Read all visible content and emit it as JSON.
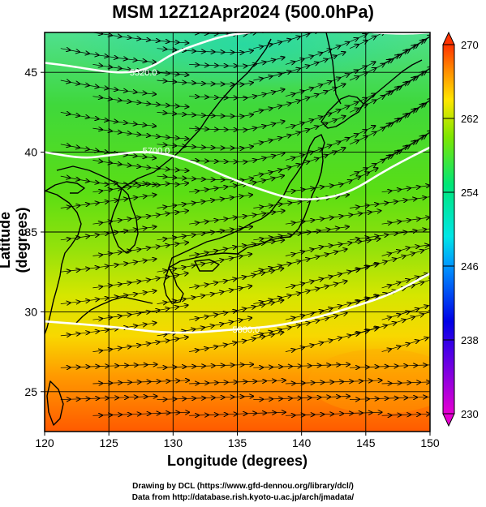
{
  "title": "MSM 12Z12Apr2024 (500.0hPa)",
  "xlabel": "Longitude (degrees)",
  "ylabel": "Latitude  (degrees)",
  "credits": {
    "line1": "Drawing by DCL (https://www.gfd-dennou.org/library/dcl/)",
    "line2": "Data from http://database.rish.kyoto-u.ac.jp/arch/jmadata/"
  },
  "chart_data": {
    "type": "heatmap",
    "title": "MSM 12Z12Apr2024 (500.0hPa)",
    "xlabel": "Longitude (degrees)",
    "ylabel": "Latitude  (degrees)",
    "xlim": [
      120,
      150
    ],
    "ylim": [
      22.5,
      47.5
    ],
    "x_ticks": [
      "120",
      "125",
      "130",
      "135",
      "140",
      "145",
      "150"
    ],
    "y_ticks": [
      "25",
      "30",
      "35",
      "40",
      "45"
    ],
    "grid": true,
    "colorbar": {
      "min": 230,
      "max": 270,
      "ticks": [
        "230",
        "238",
        "246",
        "254",
        "262",
        "270"
      ],
      "colors": [
        "#e600d2",
        "#0000e6",
        "#00c8ff",
        "#00e678",
        "#96e600",
        "#ffe600",
        "#ff8c00",
        "#ff3200"
      ]
    },
    "contours": [
      {
        "label": "5880.0",
        "points": [
          [
            120,
            29.4
          ],
          [
            125,
            29.1
          ],
          [
            130,
            28.6
          ],
          [
            135,
            28.9
          ],
          [
            138,
            29.1
          ],
          [
            141,
            29.6
          ],
          [
            144,
            30.3
          ],
          [
            147,
            31.1
          ],
          [
            150,
            32.4
          ]
        ]
      },
      {
        "label": "5700.0",
        "points": [
          [
            120,
            40.0
          ],
          [
            123,
            39.6
          ],
          [
            125,
            39.8
          ],
          [
            128,
            40.1
          ],
          [
            131,
            39.6
          ],
          [
            134,
            38.5
          ],
          [
            137,
            37.6
          ],
          [
            139.5,
            37.0
          ],
          [
            142,
            37.1
          ],
          [
            144,
            37.6
          ],
          [
            146,
            38.6
          ],
          [
            148,
            39.5
          ],
          [
            150,
            40.3
          ]
        ]
      },
      {
        "label": "5520.0",
        "points": [
          [
            120,
            45.6
          ],
          [
            122,
            45.4
          ],
          [
            125,
            45.0
          ],
          [
            127,
            45.0
          ],
          [
            128.5,
            45.4
          ],
          [
            130,
            46.2
          ],
          [
            132,
            46.8
          ],
          [
            134,
            47.3
          ],
          [
            136,
            47.5
          ]
        ]
      },
      {
        "label": "",
        "points": [
          [
            145.5,
            47.5
          ],
          [
            148,
            47.4
          ],
          [
            150,
            47.5
          ]
        ]
      }
    ],
    "wind": "streamlines with direction arrows, generally westerly/southwesterly flow"
  }
}
